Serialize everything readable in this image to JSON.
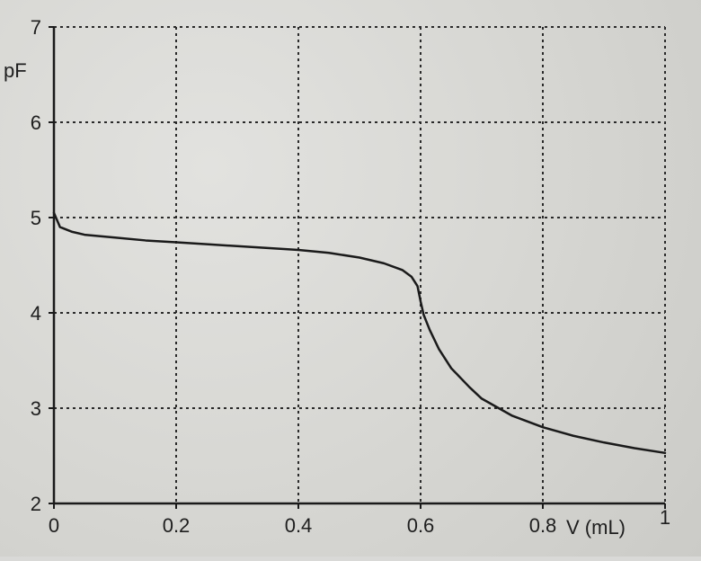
{
  "chart_data": {
    "type": "line",
    "title": "",
    "xlabel": "V (mL)",
    "ylabel": "pF",
    "xlim": [
      0,
      1
    ],
    "ylim": [
      2,
      7
    ],
    "x_ticks": [
      0,
      0.2,
      0.4,
      0.6,
      0.8,
      1
    ],
    "x_tick_labels": [
      "0",
      "0.2",
      "0.4",
      "0.6",
      "0.8",
      "1"
    ],
    "y_ticks": [
      2,
      3,
      4,
      5,
      6,
      7
    ],
    "y_tick_labels": [
      "2",
      "3",
      "4",
      "5",
      "6",
      "7"
    ],
    "grid": true,
    "legend": "none",
    "series": [
      {
        "x": [
          0,
          0.01,
          0.03,
          0.05,
          0.1,
          0.15,
          0.2,
          0.25,
          0.3,
          0.35,
          0.4,
          0.45,
          0.5,
          0.54,
          0.57,
          0.585,
          0.595,
          0.6,
          0.605,
          0.615,
          0.63,
          0.65,
          0.68,
          0.7,
          0.75,
          0.8,
          0.85,
          0.9,
          0.95,
          1.0
        ],
        "y": [
          5.05,
          4.9,
          4.85,
          4.82,
          4.79,
          4.76,
          4.74,
          4.72,
          4.7,
          4.68,
          4.66,
          4.63,
          4.58,
          4.52,
          4.45,
          4.38,
          4.28,
          4.12,
          3.98,
          3.82,
          3.62,
          3.42,
          3.22,
          3.1,
          2.92,
          2.8,
          2.71,
          2.64,
          2.58,
          2.53
        ],
        "color": "#1a1a1a"
      }
    ]
  }
}
